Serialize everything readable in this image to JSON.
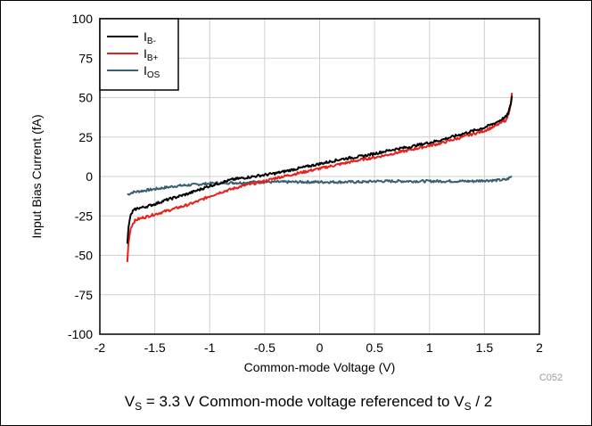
{
  "chart_data": {
    "type": "line",
    "title": "",
    "xlabel": "Common-mode Voltage (V)",
    "ylabel": "Input Bias Current (fA)",
    "xlim": [
      -2,
      2
    ],
    "ylim": [
      -100,
      100
    ],
    "x_ticks": [
      -2,
      -1.5,
      -1,
      -0.5,
      0,
      0.5,
      1,
      1.5,
      2
    ],
    "y_ticks": [
      -100,
      -75,
      -50,
      -25,
      0,
      25,
      50,
      75,
      100
    ],
    "x_tick_labels": [
      "-2",
      "-1.5",
      "-1",
      "-0.5",
      "0",
      "0.5",
      "1",
      "1.5",
      "2"
    ],
    "y_tick_labels": [
      "-100",
      "-75",
      "-50",
      "-25",
      "0",
      "25",
      "50",
      "75",
      "100"
    ],
    "grid": true,
    "legend_position": "top-left",
    "series": [
      {
        "name": "I",
        "sub": "B-",
        "color": "#000000",
        "x": [
          -1.75,
          -1.74,
          -1.73,
          -1.72,
          -1.7,
          -1.68,
          -1.65,
          -1.6,
          -1.5,
          -1.4,
          -1.3,
          -1.2,
          -1.1,
          -1.0,
          -0.9,
          -0.8,
          -0.7,
          -0.6,
          -0.5,
          -0.4,
          -0.3,
          -0.2,
          -0.1,
          0.0,
          0.1,
          0.2,
          0.3,
          0.4,
          0.5,
          0.6,
          0.7,
          0.8,
          0.9,
          1.0,
          1.1,
          1.2,
          1.3,
          1.4,
          1.5,
          1.6,
          1.65,
          1.7,
          1.72,
          1.74,
          1.75
        ],
        "y": [
          -43,
          -33,
          -28,
          -25,
          -22,
          -21,
          -20,
          -19.5,
          -17.5,
          -15,
          -13,
          -11,
          -8.5,
          -6,
          -4,
          -2,
          -1,
          0,
          1,
          2,
          3.5,
          5,
          6.5,
          8,
          9.5,
          11,
          12,
          13,
          14.5,
          16,
          17.5,
          18.5,
          20,
          21.5,
          23,
          25,
          27,
          29,
          31,
          34,
          36,
          38,
          41,
          46,
          51
        ]
      },
      {
        "name": "I",
        "sub": "B+",
        "color": "#e8201c",
        "x": [
          -1.75,
          -1.74,
          -1.73,
          -1.72,
          -1.7,
          -1.68,
          -1.65,
          -1.6,
          -1.5,
          -1.4,
          -1.3,
          -1.2,
          -1.1,
          -1.0,
          -0.9,
          -0.8,
          -0.7,
          -0.6,
          -0.5,
          -0.4,
          -0.3,
          -0.2,
          -0.1,
          0.0,
          0.1,
          0.2,
          0.3,
          0.4,
          0.5,
          0.6,
          0.7,
          0.8,
          0.9,
          1.0,
          1.1,
          1.2,
          1.3,
          1.4,
          1.5,
          1.6,
          1.65,
          1.7,
          1.72,
          1.74,
          1.75
        ],
        "y": [
          -54,
          -43,
          -37,
          -33,
          -30,
          -28,
          -27,
          -26,
          -24,
          -22,
          -20,
          -18,
          -15.5,
          -12.5,
          -10,
          -8,
          -6,
          -4.5,
          -3,
          -1,
          0.5,
          2,
          3.5,
          5,
          6.5,
          8,
          9.5,
          11,
          12,
          13.5,
          15,
          16.5,
          18,
          19.5,
          21,
          23,
          25,
          27,
          29,
          32,
          34,
          36,
          40,
          46,
          53
        ]
      },
      {
        "name": "I",
        "sub": "OS",
        "color": "#3a5f73",
        "x": [
          -1.75,
          -1.7,
          -1.6,
          -1.5,
          -1.4,
          -1.3,
          -1.2,
          -1.1,
          -1.0,
          -0.9,
          -0.8,
          -0.7,
          -0.6,
          -0.5,
          -0.4,
          -0.3,
          -0.2,
          -0.1,
          0.0,
          0.1,
          0.2,
          0.3,
          0.4,
          0.5,
          0.6,
          0.7,
          0.8,
          0.9,
          1.0,
          1.1,
          1.2,
          1.3,
          1.4,
          1.5,
          1.6,
          1.7,
          1.75
        ],
        "y": [
          -11.5,
          -10,
          -9,
          -8,
          -7,
          -6,
          -5.5,
          -5,
          -4.5,
          -4,
          -4,
          -4,
          -3.5,
          -3.5,
          -3.5,
          -3.5,
          -3.5,
          -3.5,
          -3.5,
          -3.5,
          -3.5,
          -3.5,
          -3.5,
          -3,
          -3,
          -3,
          -3,
          -3,
          -3,
          -3,
          -3,
          -3,
          -3,
          -2.5,
          -2.5,
          -2,
          0
        ]
      }
    ]
  },
  "caption": {
    "part1": "V",
    "sub1": "S",
    "part2": " = 3.3 V   Common-mode voltage referenced to V",
    "sub2": "S",
    "part3": " / 2"
  },
  "figure_code": "C052"
}
